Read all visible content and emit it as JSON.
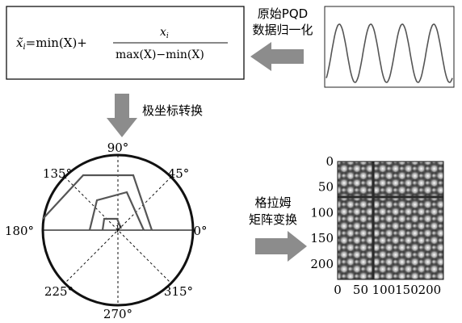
{
  "formula": {
    "lhs": "x̃",
    "lhs_sub": "i",
    "eq_plus": "=min(X)+",
    "numerator": "x",
    "numerator_sub": "i",
    "denominator": "max(X)−min(X)"
  },
  "labels": {
    "normalize": [
      "原始PQD",
      "数据归一化"
    ],
    "polar": "极坐标转换",
    "gram": [
      "格拉姆",
      "矩阵变换"
    ]
  },
  "polar": {
    "angle_labels": [
      "90°",
      "45°",
      "0°",
      "315°",
      "270°",
      "225°",
      "180°",
      "135°"
    ],
    "angle_degrees": [
      90,
      45,
      0,
      315,
      270,
      225,
      180,
      135
    ],
    "center_symbol": "γ"
  },
  "gram_matrix": {
    "x_ticks": [
      "0",
      "50",
      "100",
      "150",
      "200"
    ],
    "y_ticks": [
      "0",
      "50",
      "100",
      "150",
      "200"
    ],
    "tick_values": [
      0,
      50,
      100,
      150,
      200
    ],
    "range": [
      0,
      230
    ]
  },
  "signal": {
    "type": "sinusoid",
    "periods": 4
  },
  "colors": {
    "line": "#555555",
    "arrow": "#8c8c8c",
    "heat_bright": "#ffffff",
    "heat_dark": "#0d0d0d"
  }
}
